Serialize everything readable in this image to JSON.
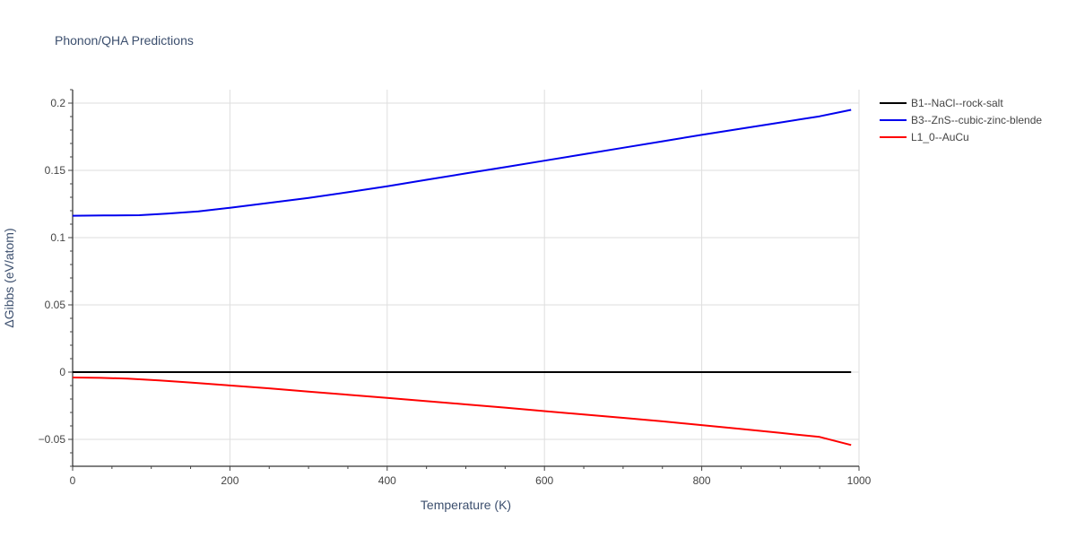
{
  "chart_data": {
    "type": "line",
    "title": "Phonon/QHA Predictions",
    "xlabel": "Temperature (K)",
    "ylabel": "ΔGibbs (eV/atom)",
    "xlim": [
      0,
      1000
    ],
    "ylim": [
      -0.07,
      0.21
    ],
    "x_ticks": [
      0,
      200,
      400,
      600,
      800,
      1000
    ],
    "x_tick_labels": [
      "0",
      "200",
      "400",
      "600",
      "800",
      "1000"
    ],
    "y_ticks": [
      -0.05,
      0,
      0.05,
      0.1,
      0.15,
      0.2
    ],
    "y_tick_labels": [
      "−0.05",
      "0",
      "0.05",
      "0.1",
      "0.15",
      "0.2"
    ],
    "grid": true,
    "legend_position": "top-right, outside plot",
    "series": [
      {
        "name": "B1--NaCl--rock-salt",
        "color": "#000000",
        "x": [
          0,
          100,
          200,
          300,
          400,
          500,
          600,
          700,
          800,
          900,
          990
        ],
        "y": [
          0,
          0,
          0,
          0,
          0,
          0,
          0,
          0,
          0,
          0,
          0
        ]
      },
      {
        "name": "B3--ZnS--cubic-zinc-blende",
        "color": "#0000ee",
        "x": [
          0,
          40,
          85,
          120,
          160,
          200,
          250,
          300,
          350,
          400,
          450,
          500,
          550,
          600,
          650,
          700,
          750,
          800,
          850,
          900,
          950,
          990
        ],
        "y": [
          0.1163,
          0.1165,
          0.1167,
          0.1178,
          0.1195,
          0.1222,
          0.1258,
          0.1295,
          0.1337,
          0.1382,
          0.143,
          0.1477,
          0.1524,
          0.1572,
          0.162,
          0.1668,
          0.1716,
          0.1764,
          0.181,
          0.1856,
          0.1902,
          0.195
        ]
      },
      {
        "name": "L1_0--AuCu",
        "color": "#ff0000",
        "x": [
          0,
          35,
          70,
          110,
          150,
          200,
          250,
          300,
          350,
          400,
          450,
          500,
          550,
          600,
          650,
          700,
          750,
          800,
          850,
          900,
          950,
          990
        ],
        "y": [
          -0.004,
          -0.0043,
          -0.0048,
          -0.0062,
          -0.0077,
          -0.0099,
          -0.0121,
          -0.0145,
          -0.0168,
          -0.0192,
          -0.0216,
          -0.024,
          -0.0264,
          -0.029,
          -0.0315,
          -0.034,
          -0.0366,
          -0.0394,
          -0.0423,
          -0.0452,
          -0.0482,
          -0.0542
        ]
      }
    ]
  }
}
